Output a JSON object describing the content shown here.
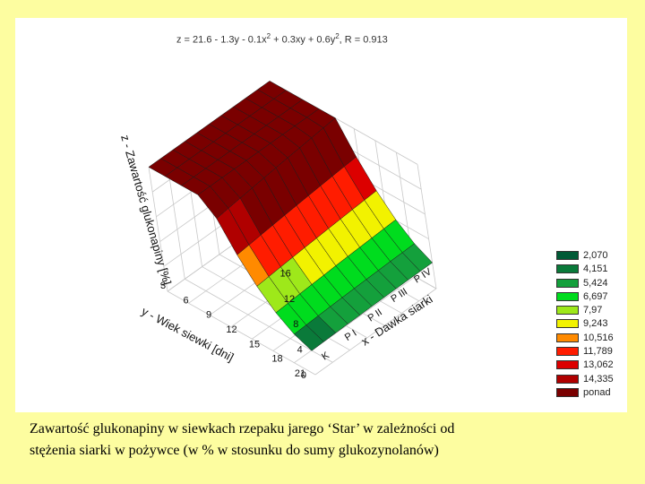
{
  "chart_data": {
    "type": "surface3d",
    "equation": {
      "lhs": "z = 21.6 - 1.3y - 0.1x",
      "mid": " + 0.3xy + 0.6y",
      "rhs": ", R = 0.913",
      "exponent": "2"
    },
    "zlabel": "z - Zawartość glukonapiny [%]",
    "ylabel": "y - Wiek siewki [dni]",
    "xlabel": "x - Dawka siarki",
    "z_ticks": [
      "16",
      "12",
      "8",
      "4",
      "0"
    ],
    "y_ticks": [
      "3",
      "6",
      "9",
      "12",
      "15",
      "18",
      "21"
    ],
    "x_ticks": [
      "K",
      "P I",
      "P II",
      "P III",
      "P IV"
    ],
    "legend": [
      {
        "label": "2,070",
        "color": "#005a36"
      },
      {
        "label": "4,151",
        "color": "#0a7a3a"
      },
      {
        "label": "5,424",
        "color": "#14a03c"
      },
      {
        "label": "6,697",
        "color": "#00dc1e"
      },
      {
        "label": "7,97",
        "color": "#9ee81a"
      },
      {
        "label": "9,243",
        "color": "#f2f200"
      },
      {
        "label": "10,516",
        "color": "#ff8a00"
      },
      {
        "label": "11,789",
        "color": "#ff1c00"
      },
      {
        "label": "13,062",
        "color": "#dc0000"
      },
      {
        "label": "14,335",
        "color": "#b00000"
      },
      {
        "label": "ponad",
        "color": "#7a0000"
      }
    ]
  },
  "caption": {
    "line1": "Zawartość glukonapiny w siewkach rzepaku jarego ‘Star’ w zależności od",
    "line2": "stężenia siarki w pożywce  (w % w stosunku do sumy glukozynolanów)"
  }
}
